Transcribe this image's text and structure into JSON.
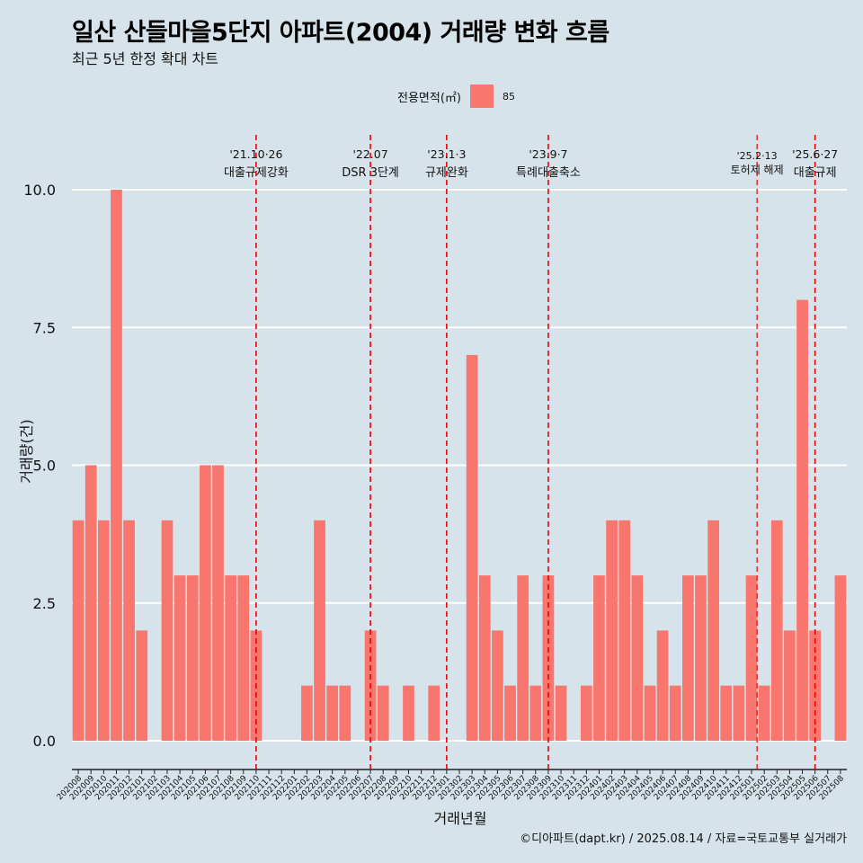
{
  "title": "일산 산들마을5단지 아파트(2004) 거래량 변화 흐름",
  "subtitle": "최근 5년 한정 확대 차트",
  "caption": "©디아파트(dapt.kr) / 2025.08.14 / 자료=국토교통부 실거래가",
  "legend": {
    "title": "전용면적(㎡)",
    "label": "85"
  },
  "colors": {
    "bar": "#f8766d",
    "background": "#d6e3ea",
    "grid": "#ffffff",
    "event_line": "#ee0000"
  },
  "chart_data": {
    "type": "bar",
    "xlabel": "거래년월",
    "ylabel": "거래량(건)",
    "ylim": [
      0,
      10
    ],
    "y_ticks": [
      "0.0",
      "2.5",
      "5.0",
      "7.5",
      "10.0"
    ],
    "grid": true,
    "legend_position": "top",
    "categories": [
      "202008",
      "202009",
      "202010",
      "202011",
      "202012",
      "202101",
      "202102",
      "202103",
      "202104",
      "202105",
      "202106",
      "202107",
      "202108",
      "202109",
      "202110",
      "202111",
      "202112",
      "202201",
      "202202",
      "202203",
      "202204",
      "202205",
      "202206",
      "202207",
      "202208",
      "202209",
      "202210",
      "202211",
      "202212",
      "202301",
      "202302",
      "202303",
      "202304",
      "202305",
      "202306",
      "202307",
      "202308",
      "202309",
      "202310",
      "202311",
      "202312",
      "202401",
      "202402",
      "202403",
      "202404",
      "202405",
      "202406",
      "202407",
      "202408",
      "202409",
      "202410",
      "202411",
      "202412",
      "202501",
      "202502",
      "202503",
      "202504",
      "202505",
      "202506",
      "202507",
      "202508"
    ],
    "series": [
      {
        "name": "85",
        "values": [
          4,
          5,
          4,
          10,
          4,
          2,
          0,
          4,
          3,
          3,
          5,
          5,
          3,
          3,
          2,
          0,
          0,
          0,
          1,
          4,
          1,
          1,
          0,
          2,
          1,
          0,
          1,
          0,
          1,
          0,
          0,
          7,
          3,
          2,
          1,
          3,
          1,
          3,
          1,
          0,
          1,
          3,
          4,
          4,
          3,
          1,
          2,
          1,
          3,
          3,
          4,
          1,
          1,
          3,
          1,
          4,
          2,
          8,
          2,
          0,
          3
        ]
      }
    ],
    "events": [
      {
        "x": "202110",
        "date": "'21.10·26",
        "label": "대출규제강화"
      },
      {
        "x": "202207",
        "date": "'22.07",
        "label": "DSR 3단계"
      },
      {
        "x": "202301",
        "date": "'23.1·3",
        "label": "규제완화"
      },
      {
        "x": "202309",
        "date": "'23.9·7",
        "label": "특례대출축소"
      },
      {
        "x": "202502",
        "date": "'25.2·13",
        "label": "토허제 해제"
      },
      {
        "x": "202506",
        "date": "'25.6·27",
        "label": "대출규제"
      }
    ]
  }
}
